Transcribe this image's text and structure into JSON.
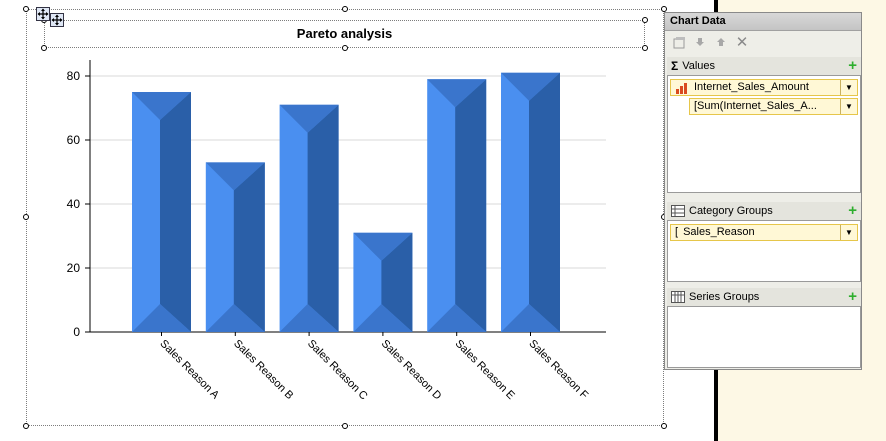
{
  "chart": {
    "title": "Pareto analysis"
  },
  "chart_data": {
    "type": "bar",
    "title": "Pareto analysis",
    "categories": [
      "Sales Reason A",
      "Sales Reason B",
      "Sales Reason C",
      "Sales Reason D",
      "Sales Reason E",
      "Sales Reason F"
    ],
    "values": [
      75,
      53,
      71,
      31,
      79,
      81
    ],
    "yticks": [
      0,
      20,
      40,
      60,
      80
    ],
    "ylim": [
      0,
      85
    ],
    "xlabel": "",
    "ylabel": "",
    "grid": true,
    "legend": "none",
    "style": "3d-pyramid-bevel",
    "colors": {
      "face": "#4a8ff0",
      "side": "#2a5fa8",
      "top": "#3a75cc"
    }
  },
  "pane": {
    "title": "Chart Data",
    "values": {
      "label": "Values",
      "field": "Internet_Sales_Amount",
      "expression": "[Sum(Internet_Sales_A..."
    },
    "category_groups": {
      "label": "Category Groups",
      "field": "Sales_Reason"
    },
    "series_groups": {
      "label": "Series Groups"
    }
  },
  "icons": {
    "sigma": "Σ",
    "delete": "✕",
    "add": "+"
  }
}
